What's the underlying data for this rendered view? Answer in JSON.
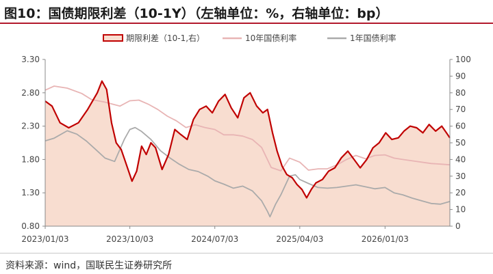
{
  "title": "图10：国债期限利差（10-1Y）（左轴单位：%，右轴单位：bp）",
  "source": "资料来源：wind，国联民生证券研究所",
  "chart_data": {
    "type": "line",
    "title": "图10：国债期限利差（10-1Y）（左轴单位：%，右轴单位：bp）",
    "x_ticks": [
      "2023/01/03",
      "2023/10/03",
      "2024/07/03",
      "2025/04/03",
      "2026/01/03"
    ],
    "x_range": [
      "2023/01/03",
      "2026/07/31"
    ],
    "y_left": {
      "min": 0.8,
      "max": 3.3,
      "ticks": [
        "0.80",
        "1.30",
        "1.80",
        "2.30",
        "2.80",
        "3.30"
      ]
    },
    "y_right": {
      "min": 0,
      "max": 100,
      "ticks": [
        "0",
        "10",
        "20",
        "30",
        "40",
        "50",
        "60",
        "70",
        "80",
        "90",
        "100"
      ]
    },
    "legend_position": "top",
    "grid": false,
    "series": [
      {
        "name": "期限利差（10-1,右）",
        "axis": "right",
        "style": "area",
        "color": "#c00000",
        "fill": "#f8ddd0",
        "points": [
          [
            "2023/01/03",
            75
          ],
          [
            "2023/01/25",
            72
          ],
          [
            "2023/02/20",
            62
          ],
          [
            "2023/03/20",
            59
          ],
          [
            "2023/04/20",
            62
          ],
          [
            "2023/05/20",
            70
          ],
          [
            "2023/06/20",
            80
          ],
          [
            "2023/07/05",
            87
          ],
          [
            "2023/07/20",
            82
          ],
          [
            "2023/08/05",
            62
          ],
          [
            "2023/08/20",
            50
          ],
          [
            "2023/09/05",
            46
          ],
          [
            "2023/09/20",
            38
          ],
          [
            "2023/10/10",
            27
          ],
          [
            "2023/10/25",
            33
          ],
          [
            "2023/11/10",
            48
          ],
          [
            "2023/11/25",
            43
          ],
          [
            "2023/12/10",
            50
          ],
          [
            "2023/12/25",
            47
          ],
          [
            "2024/01/15",
            34
          ],
          [
            "2024/02/05",
            43
          ],
          [
            "2024/02/25",
            58
          ],
          [
            "2024/03/15",
            55
          ],
          [
            "2024/04/05",
            52
          ],
          [
            "2024/04/25",
            64
          ],
          [
            "2024/05/15",
            70
          ],
          [
            "2024/06/05",
            72
          ],
          [
            "2024/06/25",
            68
          ],
          [
            "2024/07/15",
            75
          ],
          [
            "2024/08/05",
            79
          ],
          [
            "2024/08/25",
            71
          ],
          [
            "2024/09/15",
            65
          ],
          [
            "2024/10/05",
            77
          ],
          [
            "2024/10/25",
            80
          ],
          [
            "2024/11/15",
            72
          ],
          [
            "2024/12/05",
            68
          ],
          [
            "2024/12/20",
            70
          ],
          [
            "2025/01/05",
            56
          ],
          [
            "2025/01/20",
            45
          ],
          [
            "2025/02/05",
            36
          ],
          [
            "2025/02/20",
            31
          ],
          [
            "2025/03/10",
            29
          ],
          [
            "2025/03/25",
            25
          ],
          [
            "2025/04/10",
            22
          ],
          [
            "2025/04/25",
            17
          ],
          [
            "2025/05/10",
            22
          ],
          [
            "2025/05/25",
            26
          ],
          [
            "2025/06/15",
            28
          ],
          [
            "2025/07/05",
            33
          ],
          [
            "2025/07/25",
            35
          ],
          [
            "2025/08/15",
            41
          ],
          [
            "2025/09/05",
            45
          ],
          [
            "2025/09/25",
            40
          ],
          [
            "2025/10/15",
            35
          ],
          [
            "2025/11/05",
            40
          ],
          [
            "2025/11/25",
            47
          ],
          [
            "2025/12/15",
            50
          ],
          [
            "2026/01/05",
            56
          ],
          [
            "2026/01/25",
            52
          ],
          [
            "2026/02/15",
            53
          ],
          [
            "2026/03/05",
            57
          ],
          [
            "2026/03/25",
            60
          ],
          [
            "2026/04/15",
            59
          ],
          [
            "2026/05/05",
            56
          ],
          [
            "2026/05/25",
            61
          ],
          [
            "2026/06/15",
            57
          ],
          [
            "2026/07/05",
            60
          ],
          [
            "2026/07/20",
            56
          ],
          [
            "2026/07/31",
            53
          ]
        ]
      },
      {
        "name": "10年国债利率",
        "axis": "left",
        "style": "line",
        "color": "#e8b4b4",
        "points": [
          [
            "2023/01/03",
            2.84
          ],
          [
            "2023/02/01",
            2.9
          ],
          [
            "2023/03/15",
            2.87
          ],
          [
            "2023/05/01",
            2.79
          ],
          [
            "2023/06/01",
            2.7
          ],
          [
            "2023/07/15",
            2.66
          ],
          [
            "2023/09/01",
            2.6
          ],
          [
            "2023/10/03",
            2.68
          ],
          [
            "2023/11/01",
            2.69
          ],
          [
            "2023/12/01",
            2.63
          ],
          [
            "2024/01/01",
            2.55
          ],
          [
            "2024/02/01",
            2.45
          ],
          [
            "2024/03/01",
            2.38
          ],
          [
            "2024/04/01",
            2.28
          ],
          [
            "2024/05/01",
            2.32
          ],
          [
            "2024/06/01",
            2.28
          ],
          [
            "2024/07/03",
            2.25
          ],
          [
            "2024/08/01",
            2.17
          ],
          [
            "2024/09/01",
            2.17
          ],
          [
            "2024/10/01",
            2.15
          ],
          [
            "2024/11/01",
            2.1
          ],
          [
            "2024/12/01",
            1.98
          ],
          [
            "2025/01/01",
            1.68
          ],
          [
            "2025/02/01",
            1.63
          ],
          [
            "2025/03/01",
            1.82
          ],
          [
            "2025/04/03",
            1.76
          ],
          [
            "2025/05/01",
            1.64
          ],
          [
            "2025/06/01",
            1.66
          ],
          [
            "2025/07/01",
            1.66
          ],
          [
            "2025/08/01",
            1.72
          ],
          [
            "2025/09/01",
            1.8
          ],
          [
            "2025/10/01",
            1.86
          ],
          [
            "2025/11/01",
            1.81
          ],
          [
            "2025/12/01",
            1.86
          ],
          [
            "2026/01/03",
            1.87
          ],
          [
            "2026/02/01",
            1.82
          ],
          [
            "2026/03/01",
            1.8
          ],
          [
            "2026/04/01",
            1.78
          ],
          [
            "2026/05/01",
            1.76
          ],
          [
            "2026/06/01",
            1.74
          ],
          [
            "2026/07/01",
            1.73
          ],
          [
            "2026/07/31",
            1.72
          ]
        ]
      },
      {
        "name": "1年国债利率",
        "axis": "left",
        "style": "line",
        "color": "#aaaaaa",
        "points": [
          [
            "2023/01/03",
            2.08
          ],
          [
            "2023/02/01",
            2.12
          ],
          [
            "2023/03/15",
            2.23
          ],
          [
            "2023/04/15",
            2.18
          ],
          [
            "2023/05/15",
            2.08
          ],
          [
            "2023/06/15",
            1.95
          ],
          [
            "2023/07/15",
            1.82
          ],
          [
            "2023/08/15",
            1.77
          ],
          [
            "2023/09/15",
            2.1
          ],
          [
            "2023/10/03",
            2.25
          ],
          [
            "2023/10/20",
            2.28
          ],
          [
            "2023/11/10",
            2.22
          ],
          [
            "2023/12/10",
            2.1
          ],
          [
            "2024/01/10",
            1.93
          ],
          [
            "2024/02/10",
            1.82
          ],
          [
            "2024/03/10",
            1.73
          ],
          [
            "2024/04/10",
            1.65
          ],
          [
            "2024/05/10",
            1.62
          ],
          [
            "2024/06/10",
            1.55
          ],
          [
            "2024/07/03",
            1.48
          ],
          [
            "2024/08/01",
            1.43
          ],
          [
            "2024/09/01",
            1.37
          ],
          [
            "2024/10/01",
            1.4
          ],
          [
            "2024/11/01",
            1.33
          ],
          [
            "2024/12/01",
            1.18
          ],
          [
            "2024/12/20",
            1.02
          ],
          [
            "2024/12/28",
            0.94
          ],
          [
            "2025/01/15",
            1.13
          ],
          [
            "2025/02/01",
            1.27
          ],
          [
            "2025/03/01",
            1.55
          ],
          [
            "2025/03/20",
            1.57
          ],
          [
            "2025/04/03",
            1.5
          ],
          [
            "2025/05/01",
            1.44
          ],
          [
            "2025/06/01",
            1.38
          ],
          [
            "2025/07/01",
            1.37
          ],
          [
            "2025/08/01",
            1.38
          ],
          [
            "2025/09/01",
            1.4
          ],
          [
            "2025/10/01",
            1.42
          ],
          [
            "2025/11/01",
            1.39
          ],
          [
            "2025/12/01",
            1.36
          ],
          [
            "2026/01/03",
            1.38
          ],
          [
            "2026/02/01",
            1.3
          ],
          [
            "2026/03/01",
            1.27
          ],
          [
            "2026/04/01",
            1.22
          ],
          [
            "2026/05/01",
            1.18
          ],
          [
            "2026/06/01",
            1.14
          ],
          [
            "2026/07/01",
            1.13
          ],
          [
            "2026/07/31",
            1.17
          ]
        ]
      }
    ]
  }
}
